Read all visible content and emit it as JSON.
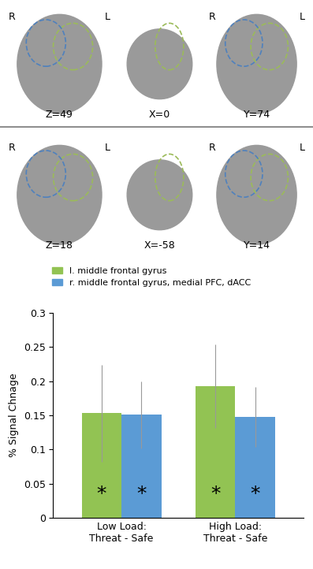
{
  "chart_data": {
    "type": "bar",
    "categories": [
      "Low Load:\nThreat - Safe",
      "High Load:\nThreat - Safe"
    ],
    "y_label": "% Signal Chnage",
    "series": [
      {
        "name": "l. middle frontal gyrus",
        "color": "#92c353",
        "values": [
          0.153,
          0.193
        ],
        "errors": [
          0.071,
          0.061
        ],
        "annotations": [
          "*",
          "*"
        ]
      },
      {
        "name": "r. middle frontal gyrus, medial PFC, dACC",
        "color": "#5b9bd5",
        "values": [
          0.151,
          0.148
        ],
        "errors": [
          0.049,
          0.044
        ],
        "annotations": [
          "*",
          "*"
        ]
      }
    ],
    "ylim": [
      0,
      0.3
    ],
    "yticks": [
      0,
      0.05,
      0.1,
      0.15,
      0.2,
      0.25,
      0.3
    ],
    "legend": "upper left",
    "grid": false
  },
  "brain_images": {
    "rows": [
      [
        {
          "left": "R",
          "right": "L",
          "slice": "Z=49"
        },
        {
          "slice": "X=0"
        },
        {
          "left": "R",
          "right": "L",
          "slice": "Y=74"
        }
      ],
      [
        {
          "left": "R",
          "right": "L",
          "slice": "Z=18"
        },
        {
          "slice": "X=-58"
        },
        {
          "left": "R",
          "right": "L",
          "slice": "Y=14"
        }
      ]
    ]
  }
}
